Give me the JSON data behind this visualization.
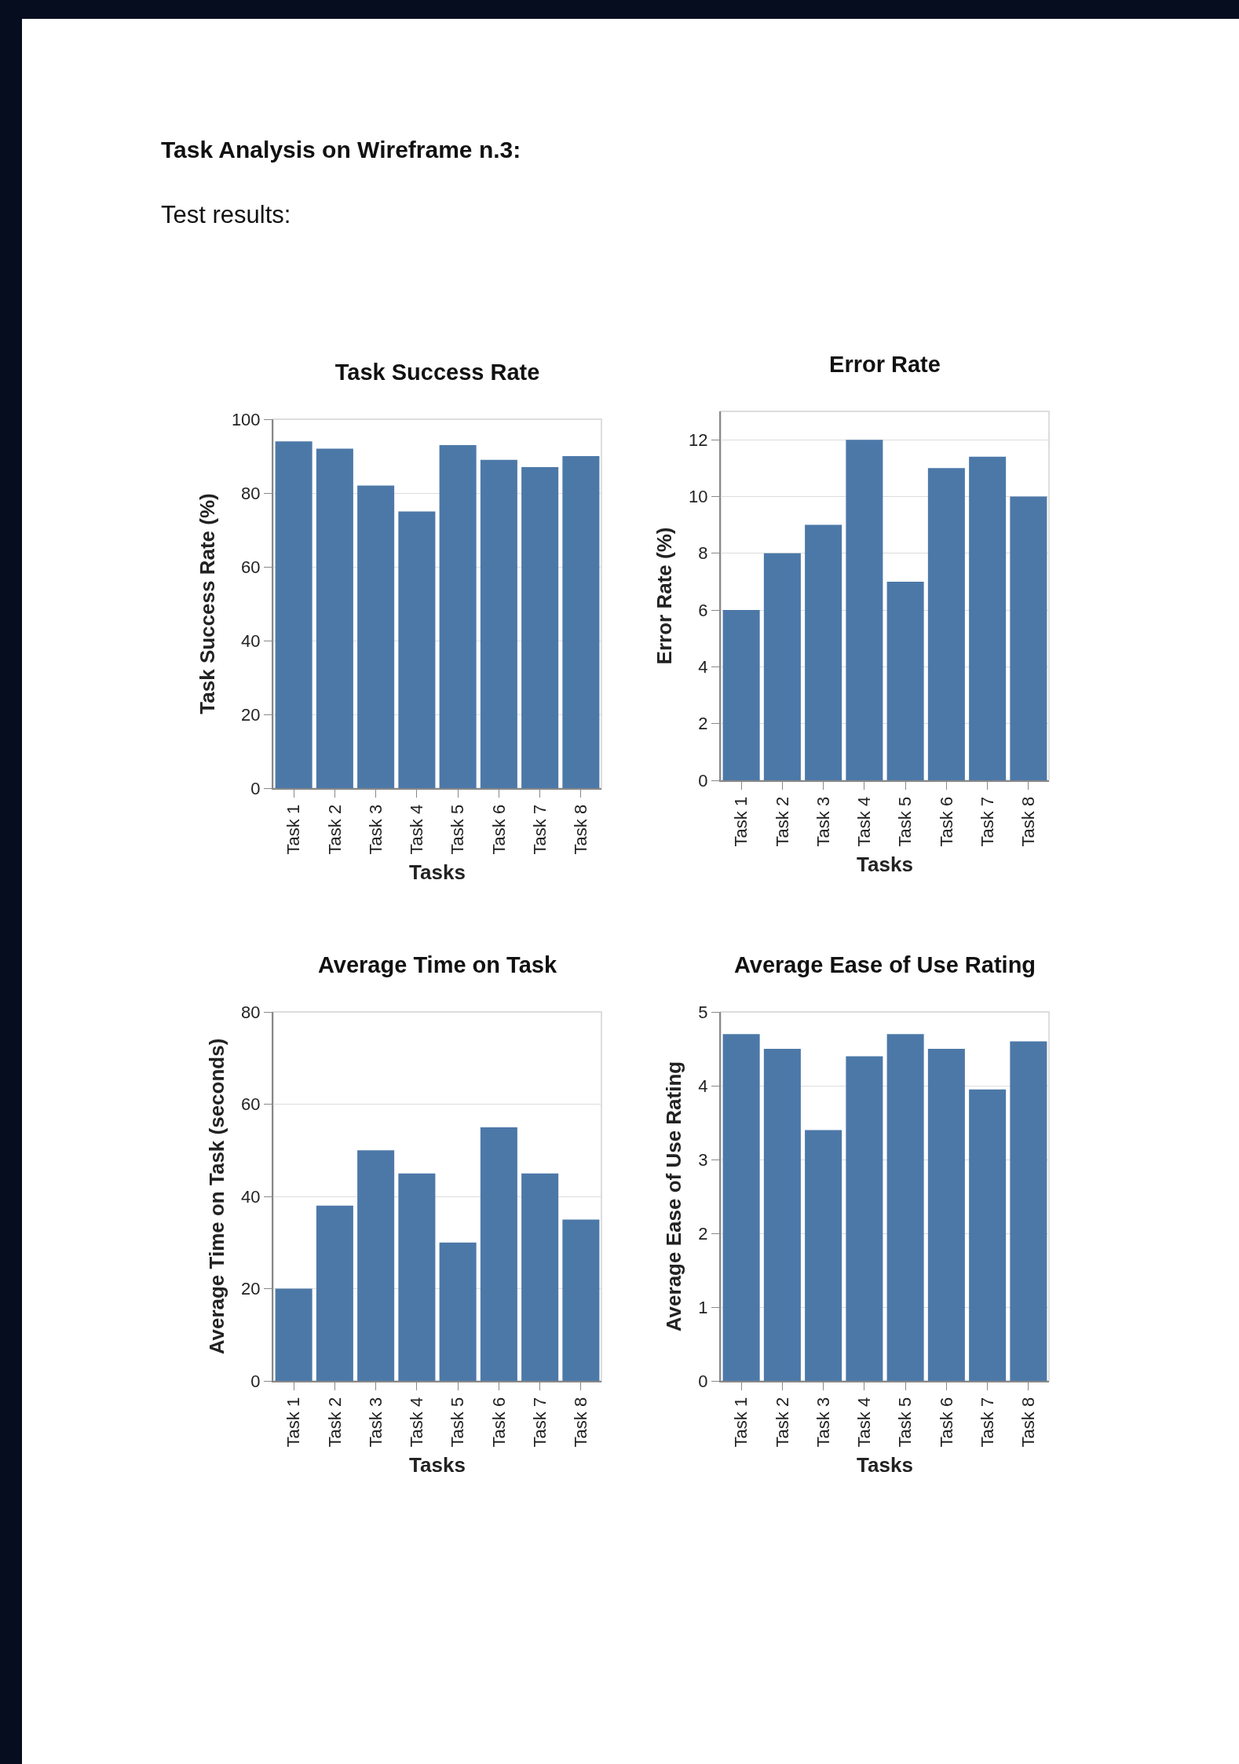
{
  "chart_data": [
    {
      "type": "bar",
      "title": "Task Success Rate",
      "xlabel": "Tasks",
      "ylabel": "Task Success Rate (%)",
      "annotations": [
        "Task Analysis on Wireframe n.3:",
        "Test results:"
      ],
      "categories": [
        "Task 1",
        "Task 2",
        "Task 3",
        "Task 4",
        "Task 5",
        "Task 6",
        "Task 7",
        "Task 8"
      ],
      "values": [
        94,
        92,
        82,
        75,
        93,
        89,
        87,
        90
      ],
      "color": "#4c78a8",
      "ylim": [
        0,
        100
      ],
      "yticks": [
        0,
        20,
        40,
        60,
        80,
        100
      ],
      "grid": "y"
    },
    {
      "type": "bar",
      "title": "Error Rate",
      "xlabel": "Tasks",
      "ylabel": "Error Rate (%)",
      "categories": [
        "Task 1",
        "Task 2",
        "Task 3",
        "Task 4",
        "Task 5",
        "Task 6",
        "Task 7",
        "Task 8"
      ],
      "values": [
        6,
        8,
        9,
        12,
        7,
        11,
        11.4,
        10
      ],
      "color": "#4c78a8",
      "ylim": [
        0,
        13
      ],
      "yticks": [
        0,
        2,
        4,
        6,
        8,
        10,
        12
      ],
      "grid": "y"
    },
    {
      "type": "bar",
      "title": "Average Time on Task",
      "xlabel": "Tasks",
      "ylabel": "Average Time on Task (seconds)",
      "categories": [
        "Task 1",
        "Task 2",
        "Task 3",
        "Task 4",
        "Task 5",
        "Task 6",
        "Task 7",
        "Task 8"
      ],
      "values": [
        20,
        38,
        50,
        45,
        30,
        55,
        45,
        35
      ],
      "color": "#4c78a8",
      "ylim": [
        0,
        80
      ],
      "yticks": [
        0,
        20,
        40,
        60,
        80
      ],
      "grid": "y"
    },
    {
      "type": "bar",
      "title": "Average Ease of Use Rating",
      "xlabel": "Tasks",
      "ylabel": "Average Ease of Use Rating",
      "categories": [
        "Task 1",
        "Task 2",
        "Task 3",
        "Task 4",
        "Task 5",
        "Task 6",
        "Task 7",
        "Task 8"
      ],
      "values": [
        4.7,
        4.5,
        3.4,
        4.4,
        4.7,
        4.5,
        3.95,
        4.6
      ],
      "color": "#4c78a8",
      "ylim": [
        0,
        5
      ],
      "yticks": [
        0,
        1,
        2,
        3,
        4,
        5
      ],
      "grid": "y"
    }
  ]
}
